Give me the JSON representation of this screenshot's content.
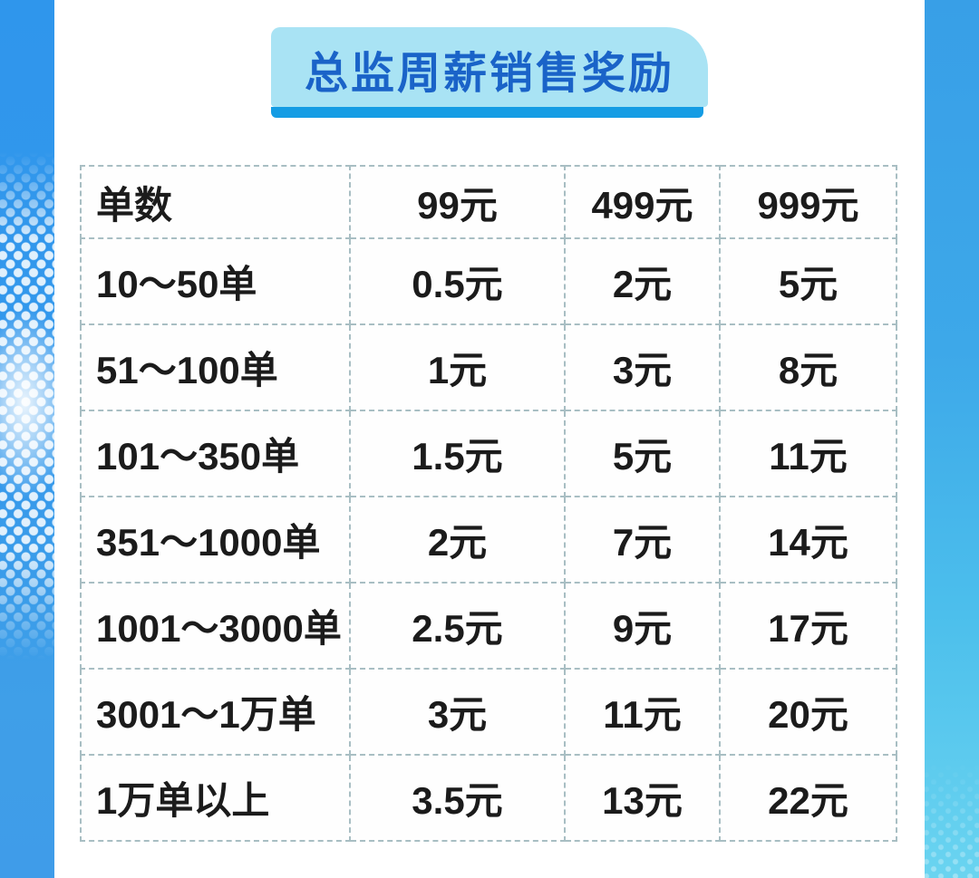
{
  "title": {
    "text": "总监周薪销售奖励"
  },
  "colors": {
    "strip_blue": "#2f96ec",
    "strip_cyan_bottom": "#6ad4f0",
    "badge_bg": "#a9e3f4",
    "badge_text": "#1a63c8",
    "badge_underline": "#149ce4",
    "table_border": "#a8bec3",
    "table_text": "#1b1b1b"
  },
  "chart_data": {
    "type": "table",
    "title": "总监周薪销售奖励",
    "columns": [
      "单数",
      "99元",
      "499元",
      "999元"
    ],
    "rows": [
      {
        "label": "10～50单",
        "values": [
          "0.5元",
          "2元",
          "5元"
        ]
      },
      {
        "label": "51～100单",
        "values": [
          "1元",
          "3元",
          "8元"
        ]
      },
      {
        "label": "101～350单",
        "values": [
          "1.5元",
          "5元",
          "11元"
        ]
      },
      {
        "label": "351～1000单",
        "values": [
          "2元",
          "7元",
          "14元"
        ]
      },
      {
        "label": "1001～3000单",
        "values": [
          "2.5元",
          "9元",
          "17元"
        ]
      },
      {
        "label": "3001～1万单",
        "values": [
          "3元",
          "11元",
          "20元"
        ]
      },
      {
        "label": "1万单以上",
        "values": [
          "3.5元",
          "13元",
          "22元"
        ]
      }
    ]
  }
}
